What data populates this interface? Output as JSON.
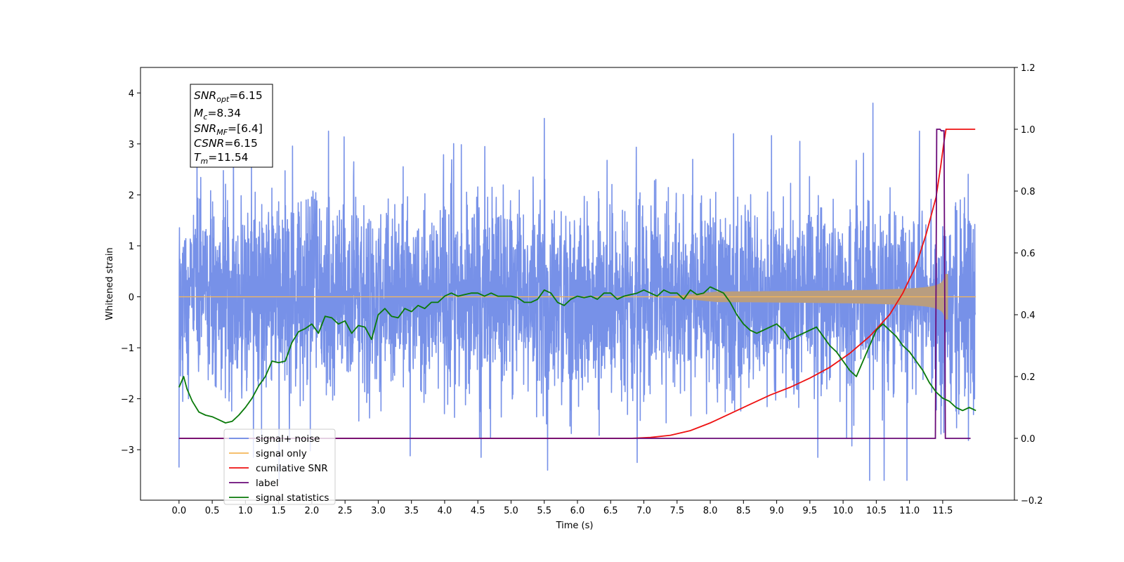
{
  "chart_data": {
    "type": "line",
    "xlabel": "Time (s)",
    "ylabel": "Whitened strain",
    "xlim": [
      -0.58,
      12.58
    ],
    "ylim": [
      -3.99,
      4.5
    ],
    "y2lim": [
      -0.2,
      1.2
    ],
    "x_ticks": [
      0.0,
      0.5,
      1.0,
      1.5,
      2.0,
      2.5,
      3.0,
      3.5,
      4.0,
      4.5,
      5.0,
      5.5,
      6.0,
      6.5,
      7.0,
      7.5,
      8.0,
      8.5,
      9.0,
      9.5,
      10.0,
      10.5,
      11.0,
      11.5
    ],
    "x_tick_labels": [
      "0.0",
      "0.5",
      "1.0",
      "1.5",
      "2.0",
      "2.5",
      "3.0",
      "3.5",
      "4.0",
      "4.5",
      "5.0",
      "5.5",
      "6.0",
      "6.5",
      "7.0",
      "7.5",
      "8.0",
      "8.5",
      "9.0",
      "9.5",
      "10.0",
      "10.5",
      "11.0",
      "11.5"
    ],
    "y_ticks": [
      -3,
      -2,
      -1,
      0,
      1,
      2,
      3,
      4
    ],
    "y_tick_labels": [
      "−3",
      "−2",
      "−1",
      "0",
      "1",
      "2",
      "3",
      "4"
    ],
    "y2_ticks": [
      -0.2,
      0.0,
      0.2,
      0.4,
      0.6,
      0.8,
      1.0,
      1.2
    ],
    "y2_tick_labels": [
      "−0.2",
      "0.0",
      "0.2",
      "0.4",
      "0.6",
      "0.8",
      "1.0",
      "1.2"
    ],
    "colors": {
      "signal_noise": "#6b88e6",
      "signal_only": "#f5b759",
      "signal_overlap": "#b89d80",
      "cumulative_snr": "#ee1111",
      "label": "#6a0a78",
      "signal_statistics": "#0a7a0a"
    },
    "annotations": {
      "snr_opt": {
        "base": "SNR",
        "sub": "opt",
        "value": "=6.15"
      },
      "mc": {
        "base": "M",
        "sub": "c",
        "value": "=8.34"
      },
      "snr_mf": {
        "base": "SNR",
        "sub": "MF",
        "value": "=[6.4]"
      },
      "csnr": {
        "base": "CSNR",
        "value": "=6.15"
      },
      "tm": {
        "base": "T",
        "sub": "m",
        "value": "=11.54"
      }
    },
    "legend": {
      "placement": "lower-left",
      "entries": [
        "signal+ noise",
        "signal only",
        "cumilative SNR",
        "label",
        "signal statistics"
      ]
    },
    "series": [
      {
        "name": "signal+ noise",
        "axis": "left",
        "style": "noise",
        "x_range": [
          0.0,
          11.99
        ],
        "std": 0.95,
        "peaks": [
          [
            0.0,
            -3.35
          ],
          [
            0.27,
            3.15
          ],
          [
            0.82,
            3.05
          ],
          [
            1.12,
            -3.15
          ],
          [
            2.25,
            3.25
          ],
          [
            3.48,
            -3.12
          ],
          [
            4.55,
            -3.15
          ],
          [
            5.5,
            3.5
          ],
          [
            5.55,
            -3.4
          ],
          [
            6.9,
            -3.25
          ],
          [
            8.35,
            3.2
          ],
          [
            9.35,
            3.05
          ],
          [
            9.62,
            -3.15
          ],
          [
            10.45,
            3.8
          ],
          [
            10.4,
            -3.6
          ],
          [
            11.15,
            3.25
          ]
        ]
      },
      {
        "name": "signal only",
        "axis": "left",
        "style": "chirp",
        "flat_until": 7.3,
        "amp_ref_t": 10.5,
        "amp_ref": 0.14,
        "t_merge": 11.54,
        "peak_amp": 0.45
      },
      {
        "name": "cumilative SNR",
        "axis": "right",
        "x": [
          0.0,
          6.8,
          7.1,
          7.4,
          7.7,
          8.0,
          8.3,
          8.6,
          8.9,
          9.2,
          9.5,
          9.8,
          10.1,
          10.4,
          10.7,
          10.9,
          11.1,
          11.25,
          11.4,
          11.47,
          11.52,
          11.55,
          11.99
        ],
        "y": [
          0.0,
          0.0,
          0.003,
          0.01,
          0.025,
          0.05,
          0.08,
          0.11,
          0.14,
          0.165,
          0.195,
          0.23,
          0.275,
          0.33,
          0.4,
          0.47,
          0.56,
          0.66,
          0.78,
          0.88,
          0.96,
          1.0,
          1.0
        ]
      },
      {
        "name": "label",
        "axis": "right",
        "x": [
          0.0,
          11.39,
          11.41,
          11.46,
          11.48,
          11.52,
          11.54,
          11.92
        ],
        "y": [
          0.0,
          0.0,
          1.0,
          1.0,
          0.995,
          0.995,
          0.0,
          0.0
        ]
      },
      {
        "name": "signal statistics",
        "axis": "right",
        "x": [
          0.0,
          0.07,
          0.12,
          0.2,
          0.3,
          0.4,
          0.5,
          0.6,
          0.7,
          0.8,
          0.9,
          1.0,
          1.1,
          1.2,
          1.3,
          1.4,
          1.5,
          1.6,
          1.7,
          1.8,
          1.9,
          2.0,
          2.1,
          2.2,
          2.3,
          2.4,
          2.5,
          2.6,
          2.7,
          2.8,
          2.9,
          3.0,
          3.1,
          3.2,
          3.3,
          3.4,
          3.5,
          3.6,
          3.7,
          3.8,
          3.9,
          4.0,
          4.1,
          4.2,
          4.3,
          4.4,
          4.5,
          4.6,
          4.7,
          4.8,
          4.9,
          5.0,
          5.1,
          5.2,
          5.3,
          5.4,
          5.5,
          5.6,
          5.7,
          5.8,
          5.9,
          6.0,
          6.1,
          6.2,
          6.3,
          6.4,
          6.5,
          6.6,
          6.7,
          6.8,
          6.9,
          7.0,
          7.1,
          7.2,
          7.3,
          7.4,
          7.5,
          7.6,
          7.7,
          7.8,
          7.9,
          8.0,
          8.1,
          8.2,
          8.3,
          8.4,
          8.5,
          8.6,
          8.7,
          8.8,
          8.9,
          9.0,
          9.1,
          9.2,
          9.3,
          9.4,
          9.5,
          9.6,
          9.7,
          9.8,
          9.9,
          10.0,
          10.1,
          10.2,
          10.3,
          10.4,
          10.5,
          10.6,
          10.7,
          10.8,
          10.9,
          11.0,
          11.1,
          11.2,
          11.3,
          11.4,
          11.5,
          11.6,
          11.7,
          11.8,
          11.9,
          12.0
        ],
        "y": [
          0.165,
          0.2,
          0.16,
          0.12,
          0.085,
          0.075,
          0.07,
          0.06,
          0.05,
          0.055,
          0.075,
          0.1,
          0.13,
          0.17,
          0.2,
          0.25,
          0.245,
          0.25,
          0.31,
          0.345,
          0.355,
          0.37,
          0.34,
          0.395,
          0.39,
          0.37,
          0.38,
          0.34,
          0.365,
          0.36,
          0.32,
          0.4,
          0.42,
          0.395,
          0.39,
          0.42,
          0.41,
          0.43,
          0.42,
          0.44,
          0.44,
          0.46,
          0.47,
          0.46,
          0.465,
          0.47,
          0.47,
          0.46,
          0.47,
          0.46,
          0.46,
          0.46,
          0.455,
          0.44,
          0.44,
          0.45,
          0.48,
          0.47,
          0.44,
          0.43,
          0.45,
          0.46,
          0.455,
          0.46,
          0.45,
          0.47,
          0.47,
          0.45,
          0.46,
          0.465,
          0.47,
          0.48,
          0.47,
          0.46,
          0.48,
          0.47,
          0.47,
          0.45,
          0.48,
          0.465,
          0.47,
          0.49,
          0.48,
          0.47,
          0.44,
          0.4,
          0.37,
          0.35,
          0.34,
          0.35,
          0.36,
          0.37,
          0.35,
          0.32,
          0.33,
          0.34,
          0.35,
          0.36,
          0.33,
          0.3,
          0.28,
          0.25,
          0.22,
          0.2,
          0.25,
          0.3,
          0.35,
          0.37,
          0.35,
          0.33,
          0.3,
          0.28,
          0.25,
          0.22,
          0.18,
          0.15,
          0.13,
          0.12,
          0.1,
          0.09,
          0.1,
          0.09
        ]
      }
    ]
  }
}
